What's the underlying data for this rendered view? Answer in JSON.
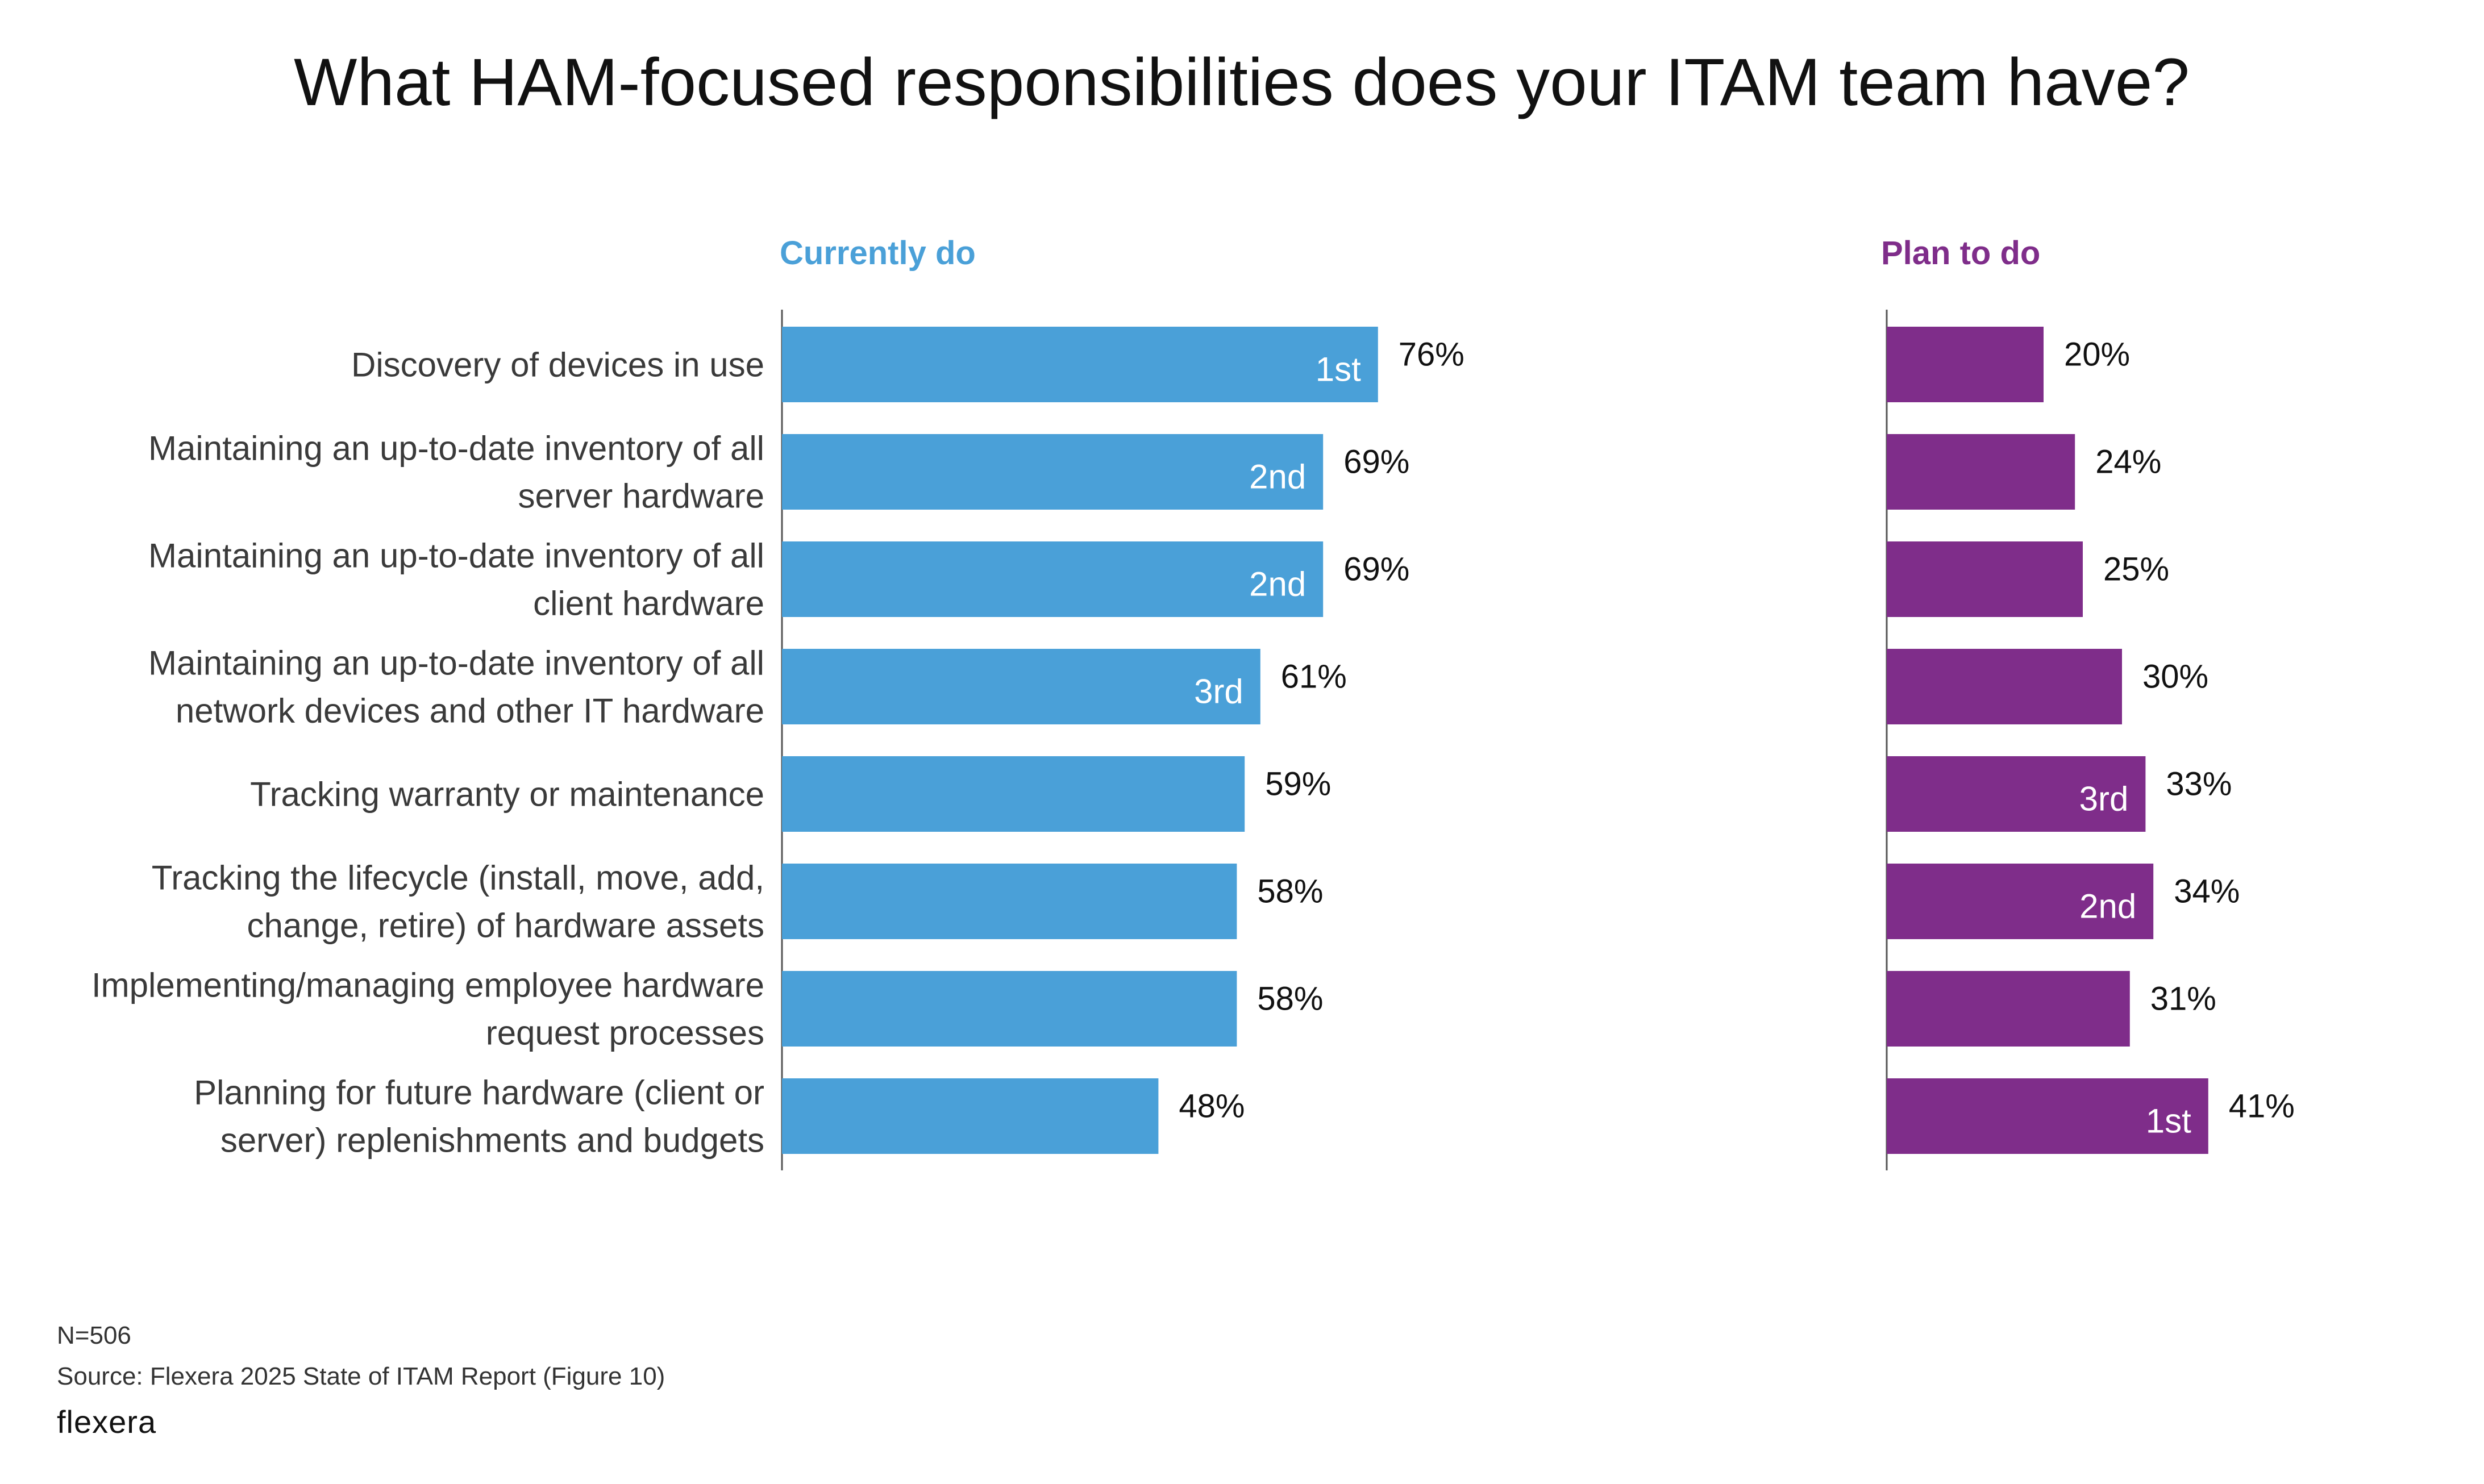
{
  "chart_data": {
    "type": "bar",
    "title": "What HAM-focused responsibilities does your ITAM team have?",
    "categories": [
      [
        "Discovery of devices in use"
      ],
      [
        "Maintaining an up-to-date inventory of all",
        "server hardware"
      ],
      [
        "Maintaining an up-to-date inventory of all",
        "client hardware"
      ],
      [
        "Maintaining an up-to-date inventory of all",
        "network devices and other IT hardware"
      ],
      [
        "Tracking warranty or maintenance"
      ],
      [
        "Tracking the lifecycle (install, move, add,",
        "change, retire) of hardware assets"
      ],
      [
        "Implementing/managing employee hardware",
        "request processes"
      ],
      [
        "Planning for future hardware (client or",
        "server) replenishments and budgets"
      ]
    ],
    "series": [
      {
        "name": "Currently do",
        "color": "#4aa0d8",
        "values": [
          76,
          69,
          69,
          61,
          59,
          58,
          58,
          48
        ],
        "value_labels": [
          "76%",
          "69%",
          "69%",
          "61%",
          "59%",
          "58%",
          "58%",
          "48%"
        ],
        "ranks": [
          "1st",
          "2nd",
          "2nd",
          "3rd",
          "",
          "",
          "",
          ""
        ]
      },
      {
        "name": "Plan to do",
        "color": "#7f2d8a",
        "values": [
          20,
          24,
          25,
          30,
          33,
          34,
          31,
          41
        ],
        "value_labels": [
          "20%",
          "24%",
          "25%",
          "30%",
          "33%",
          "34%",
          "31%",
          "41%"
        ],
        "ranks": [
          "",
          "",
          "",
          "",
          "3rd",
          "2nd",
          "",
          "1st"
        ]
      }
    ],
    "xlabel": "",
    "ylabel": "",
    "unit": "%"
  },
  "footer": {
    "sample": "N=506",
    "source": "Source: Flexera 2025 State of ITAM Report (Figure 10)",
    "logo": "flexera"
  }
}
